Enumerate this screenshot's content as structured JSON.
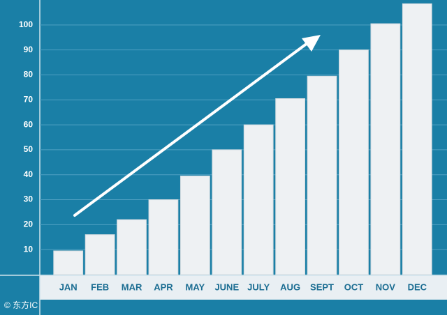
{
  "chart_data": {
    "type": "bar",
    "categories": [
      "JAN",
      "FEB",
      "MAR",
      "APR",
      "MAY",
      "JUNE",
      "JULY",
      "AUG",
      "SEPT",
      "OCT",
      "NOV",
      "DEC"
    ],
    "values": [
      9.5,
      16,
      22,
      30,
      39.5,
      50,
      60,
      70.5,
      79.5,
      90,
      100.5,
      108.5
    ],
    "color": "#eef1f3",
    "background": "#1a7fa6",
    "ylim": [
      0,
      110
    ],
    "yticks": [
      10,
      20,
      30,
      40,
      50,
      60,
      70,
      80,
      90,
      100
    ],
    "grid": true,
    "watermark": "© 东方IC"
  }
}
